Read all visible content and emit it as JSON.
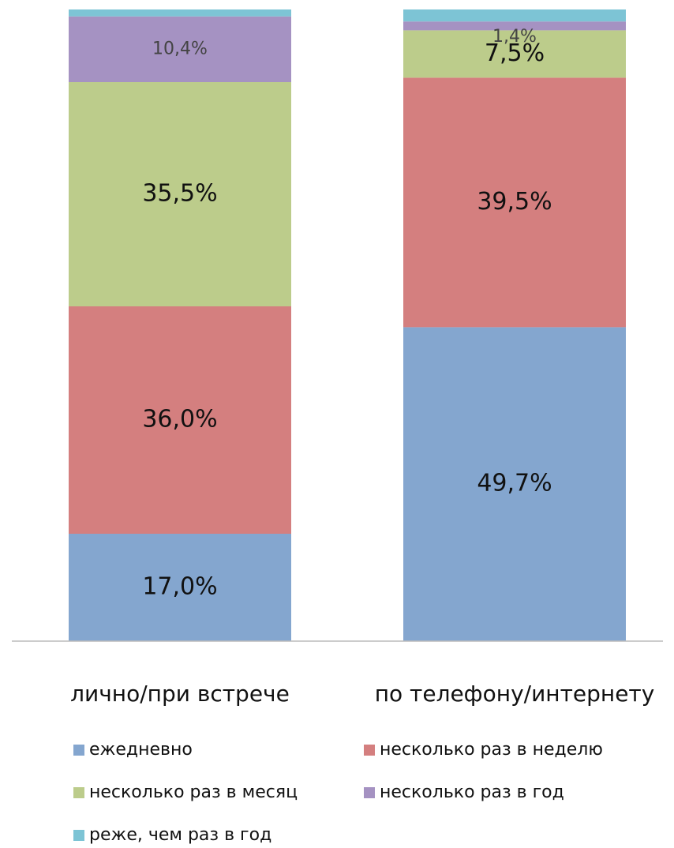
{
  "chart_data": {
    "type": "stacked_bar",
    "categories": [
      "лично/при встрече",
      "по телефону/интернету"
    ],
    "ylim": [
      0,
      100
    ],
    "series": [
      {
        "name": "ежедневно",
        "color": "#84a6cf",
        "values": [
          17.0,
          49.7
        ],
        "value_labels": [
          "17,0%",
          "49,7%"
        ]
      },
      {
        "name": "несколько раз в неделю",
        "color": "#d47f7f",
        "values": [
          36.0,
          39.5
        ],
        "value_labels": [
          "36,0%",
          "39,5%"
        ]
      },
      {
        "name": "несколько раз в месяц",
        "color": "#bccc8b",
        "values": [
          35.5,
          7.5
        ],
        "value_labels": [
          "35,5%",
          "7,5%"
        ]
      },
      {
        "name": "несколько раз в год",
        "color": "#a592c2",
        "values": [
          10.4,
          1.4
        ],
        "value_labels": [
          "10,4%",
          "1,4%"
        ]
      },
      {
        "name": "реже, чем раз в год",
        "color": "#7dc4d5",
        "values": [
          1.1,
          1.9
        ],
        "value_labels": [
          null,
          null
        ]
      }
    ]
  }
}
